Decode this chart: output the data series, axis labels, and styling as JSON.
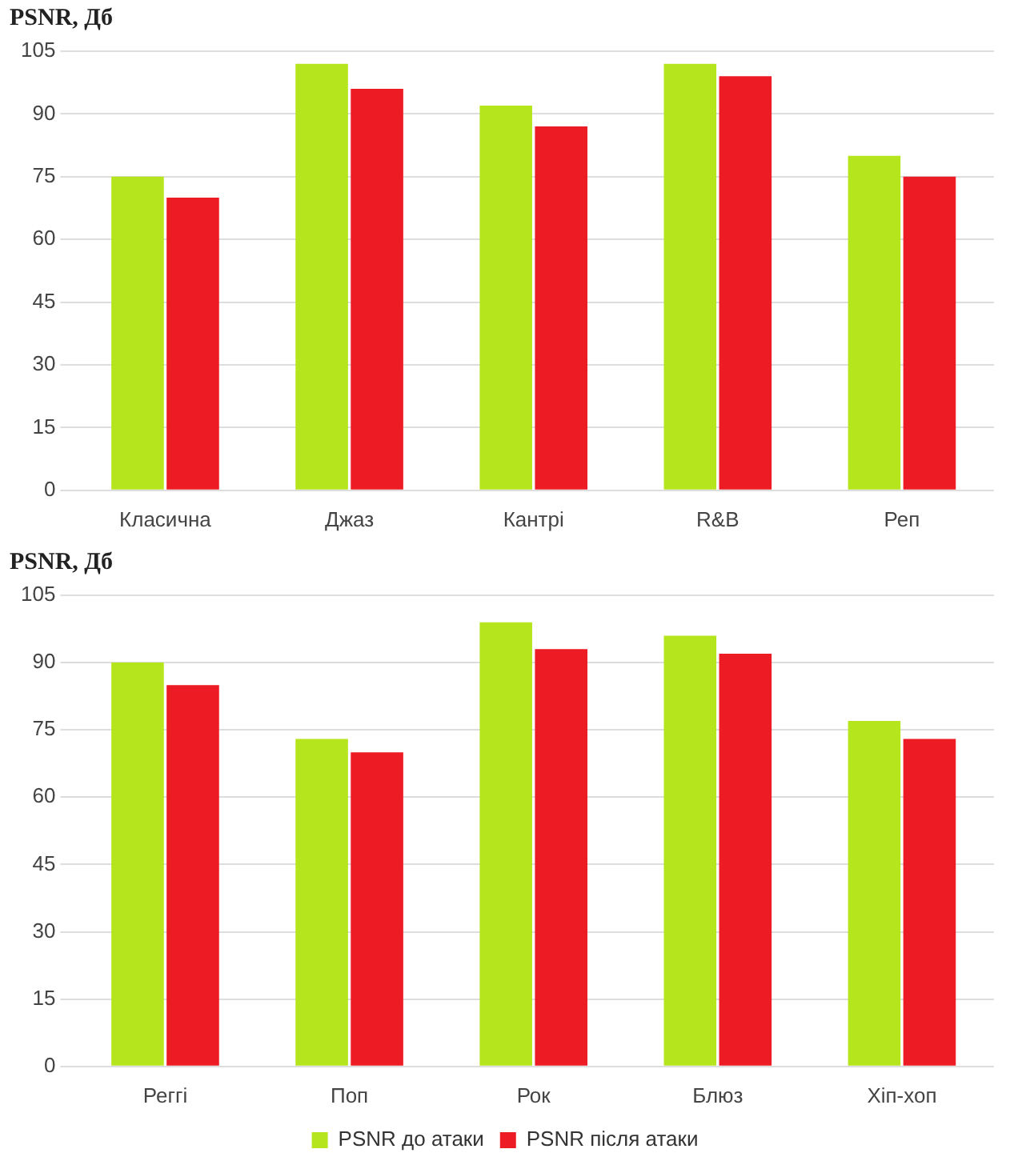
{
  "chart_data": [
    {
      "type": "bar",
      "ylabel": "PSNR, Дб",
      "categories": [
        "Класична",
        "Джаз",
        "Кантрі",
        "R&B",
        "Реп"
      ],
      "series": [
        {
          "color": "#b5e61d",
          "values": [
            75,
            102,
            92,
            102,
            80
          ]
        },
        {
          "color": "#ed1c24",
          "values": [
            70,
            96,
            87,
            99,
            75
          ]
        }
      ],
      "ylim": [
        0,
        105
      ],
      "yticks": [
        0,
        15,
        30,
        45,
        60,
        75,
        90,
        105
      ],
      "grid": "y",
      "legend": false
    },
    {
      "type": "bar",
      "ylabel": "PSNR, Дб",
      "categories": [
        "Реггі",
        "Поп",
        "Рок",
        "Блюз",
        "Хіп-хоп"
      ],
      "series": [
        {
          "name": "PSNR до атаки",
          "color": "#b5e61d",
          "values": [
            90,
            73,
            99,
            96,
            77
          ]
        },
        {
          "name": "PSNR після атаки",
          "color": "#ed1c24",
          "values": [
            85,
            70,
            93,
            92,
            73
          ]
        }
      ],
      "ylim": [
        0,
        105
      ],
      "yticks": [
        0,
        15,
        30,
        45,
        60,
        75,
        90,
        105
      ],
      "grid": "y",
      "legend": "bottom"
    }
  ]
}
